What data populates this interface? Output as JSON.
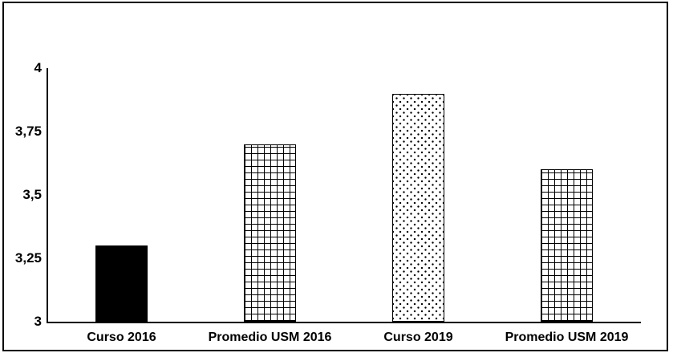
{
  "window": {
    "background_color": "#ffffff",
    "frame_border_color": "#000000",
    "text_color": "#000000"
  },
  "chart_data": {
    "type": "bar",
    "title": "",
    "xlabel": "",
    "ylabel": "",
    "categories": [
      "Curso 2016",
      "Promedio USM 2016",
      "Curso 2019",
      "Promedio USM 2019"
    ],
    "values": [
      3.3,
      3.7,
      3.9,
      3.6
    ],
    "bar_patterns": [
      "solid-black",
      "small-grid",
      "dots",
      "small-grid"
    ],
    "bar_fill_colors": [
      "#000000",
      "#ffffff",
      "#ffffff",
      "#ffffff"
    ],
    "bar_stroke_color": "#000000",
    "ylim": [
      3,
      4
    ],
    "ytick_values": [
      3,
      3.25,
      3.5,
      3.75,
      4
    ],
    "ytick_labels": [
      "3",
      "3,25",
      "3,5",
      "3,75",
      "4"
    ],
    "decimal_separator": ",",
    "grid": "off",
    "legend": "none",
    "axis_color": "#000000"
  }
}
